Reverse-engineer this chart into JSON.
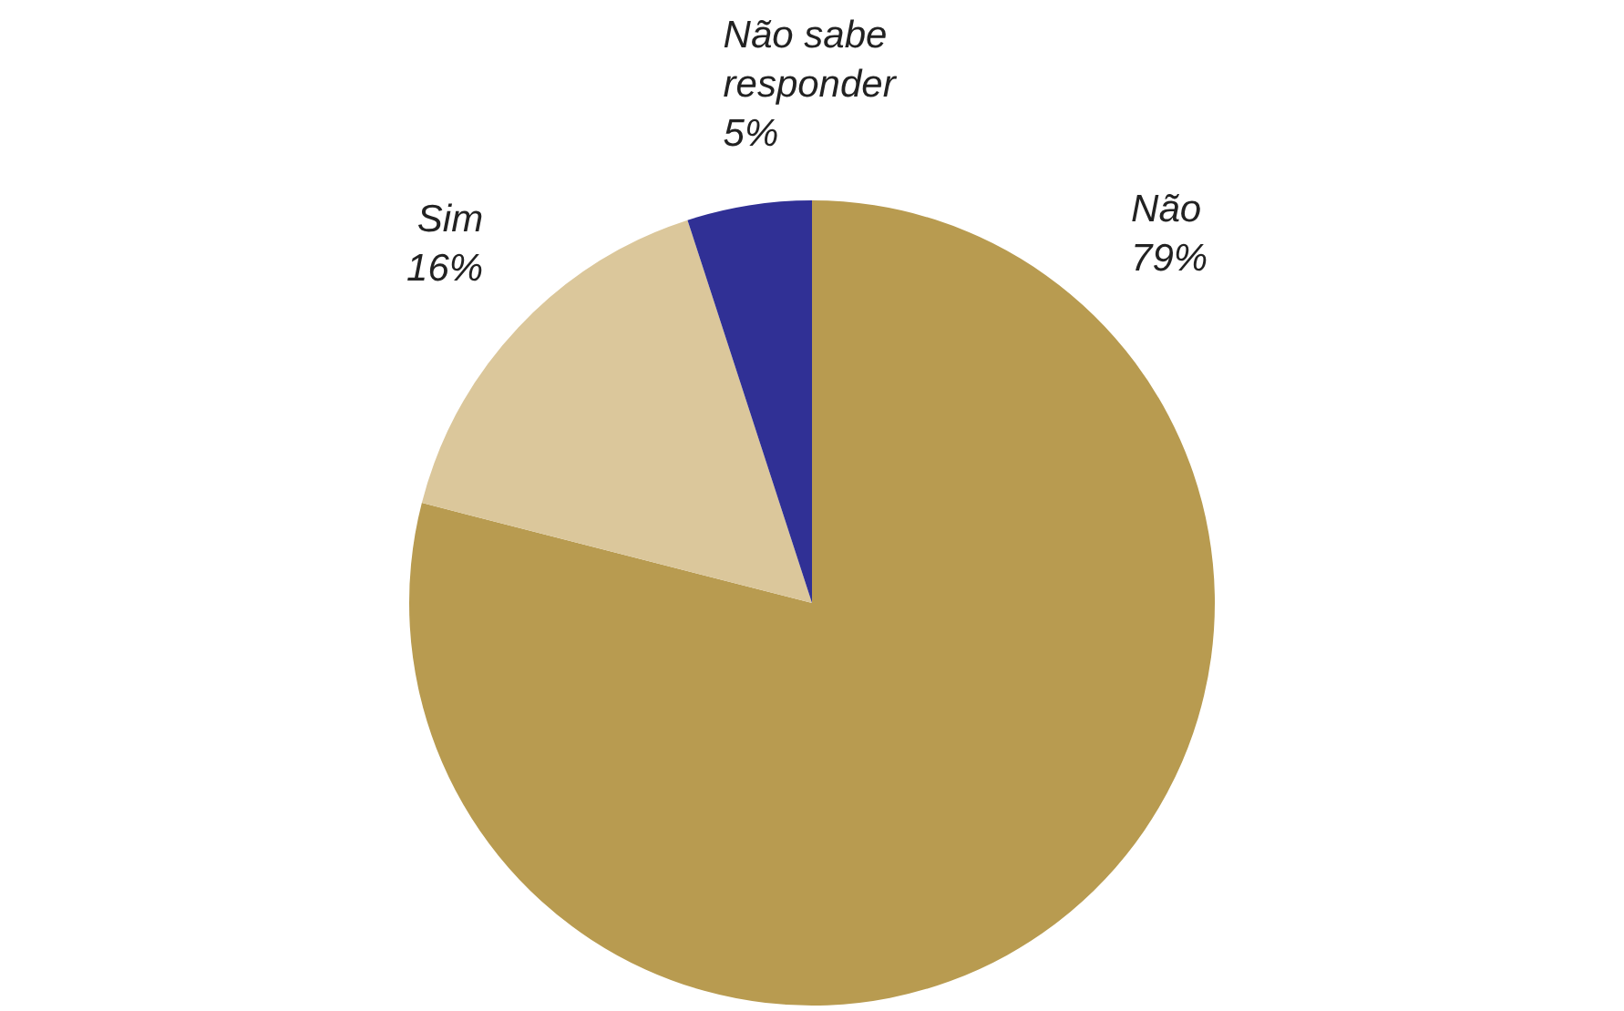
{
  "chart_data": {
    "type": "pie",
    "categories": [
      "Não",
      "Sim",
      "Não sabe responder"
    ],
    "values": [
      79,
      16,
      5
    ],
    "colors": [
      "#b89b50",
      "#dbc79b",
      "#303095"
    ],
    "value_labels": [
      "79%",
      "16%",
      "5%"
    ]
  }
}
